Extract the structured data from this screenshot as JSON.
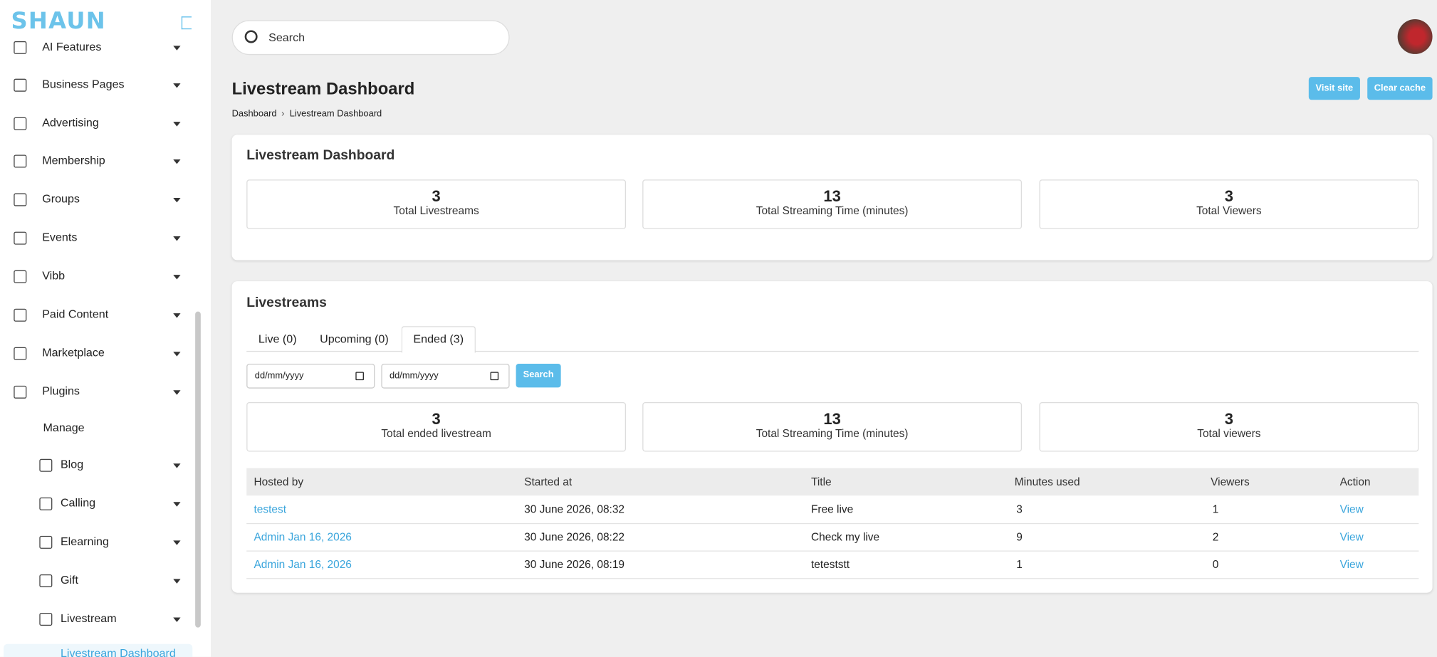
{
  "sidebar": {
    "logo": "SHAUN",
    "items": [
      "AI Features",
      "Business Pages",
      "Advertising",
      "Membership",
      "Groups",
      "Events",
      "Vibb",
      "Paid Content",
      "Marketplace",
      "Plugins"
    ],
    "manage": "Manage",
    "plugin_items": [
      "Blog",
      "Calling",
      "Elearning",
      "Gift",
      "Livestream"
    ],
    "active": "Livestream Dashboard"
  },
  "header": {
    "search_placeholder": "Search",
    "title": "Livestream Dashboard",
    "buttons": [
      "Visit site",
      "Clear cache"
    ],
    "breadcrumb": [
      "Dashboard",
      "Livestream Dashboard"
    ]
  },
  "overview": {
    "title": "Livestream Dashboard",
    "stats": [
      {
        "value": 3,
        "label": "Total Livestreams"
      },
      {
        "value": 13,
        "label": "Total Streaming Time (minutes)"
      },
      {
        "value": 3,
        "label": "Total Viewers"
      }
    ]
  },
  "livestreams": {
    "title": "Livestreams",
    "tabs": [
      "Live (0)",
      "Upcoming (0)",
      "Ended (3)"
    ],
    "date_placeholders": [
      "dd/mm/yyyy",
      "dd/mm/yyyy"
    ],
    "search_button": "Search",
    "stats": [
      {
        "value": 3,
        "label": "Total ended livestream"
      },
      {
        "value": 13,
        "label": "Total Streaming Time (minutes)"
      },
      {
        "value": 3,
        "label": "Total viewers"
      }
    ],
    "table": {
      "columns": [
        "Hosted by",
        "Started at",
        "Title",
        "Minutes used",
        "Viewers",
        "Action"
      ],
      "rows": [
        [
          "testest",
          "30 June 2026, 08:32",
          "Free live",
          3,
          1,
          "View"
        ],
        [
          "Admin Jan 16, 2026",
          "30 June 2026, 08:22",
          "Check my live",
          9,
          2,
          "View"
        ],
        [
          "Admin Jan 16, 2026",
          "30 June 2026, 08:19",
          "teteststt",
          1,
          0,
          "View"
        ]
      ]
    }
  }
}
